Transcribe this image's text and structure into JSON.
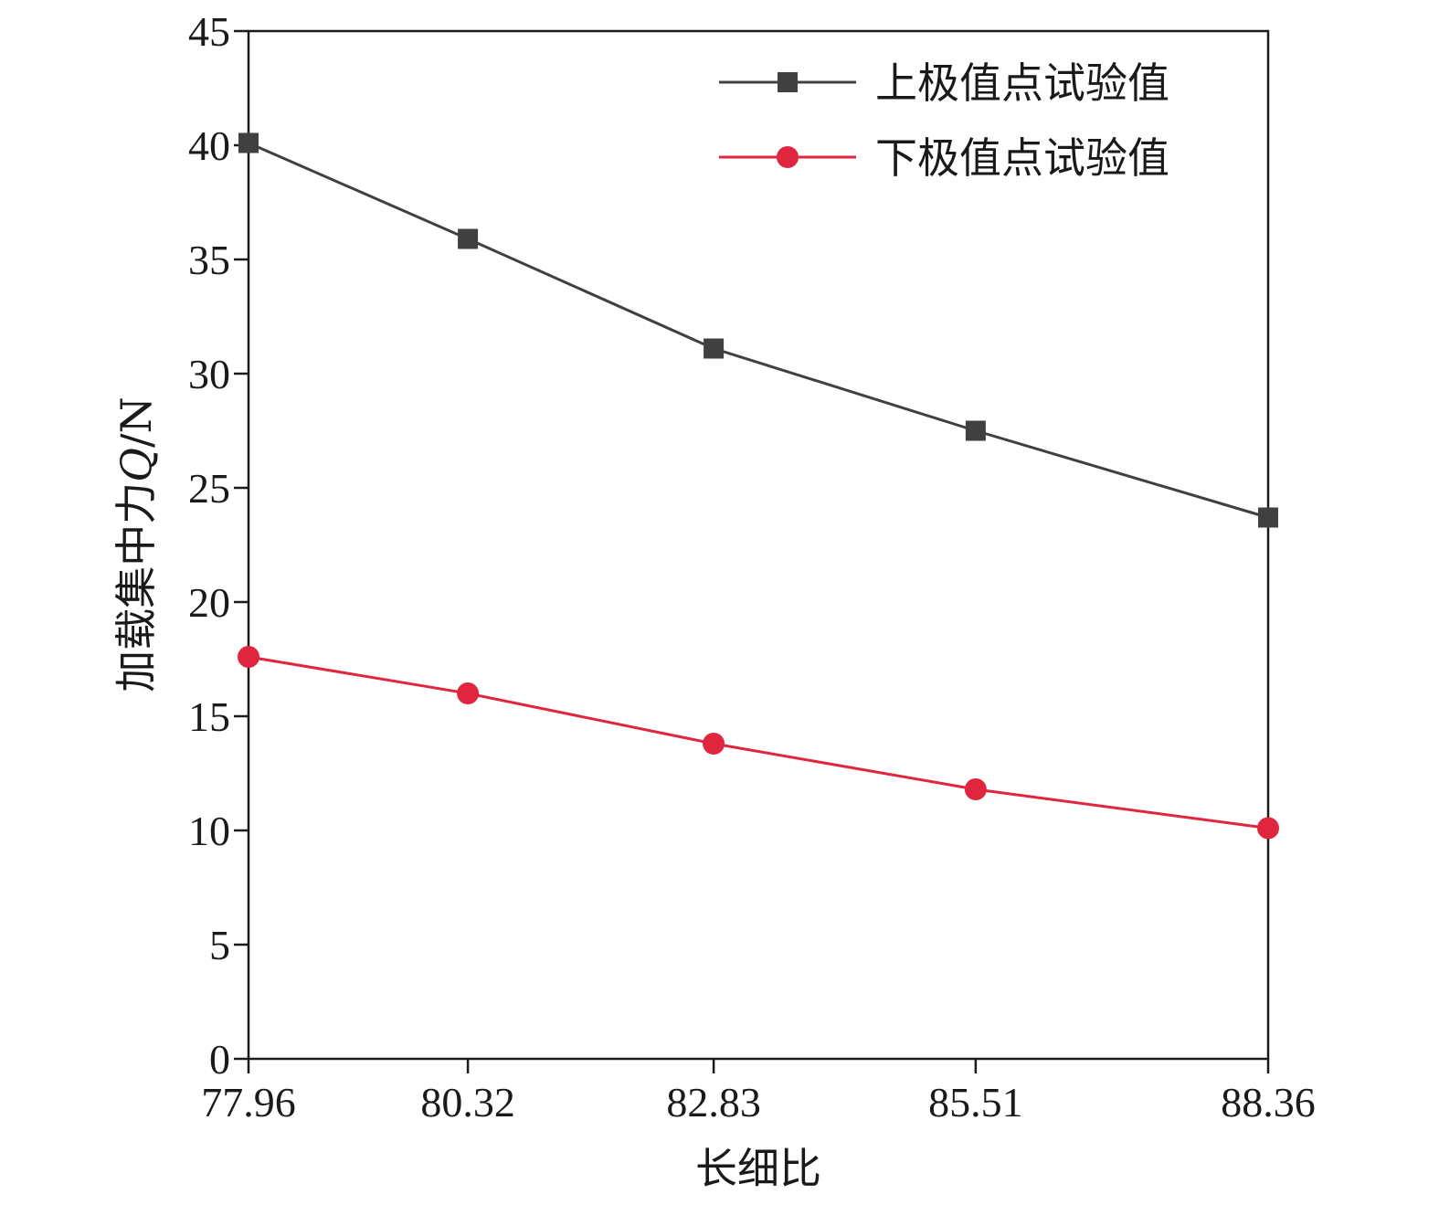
{
  "chart_data": {
    "type": "line",
    "x_tick_labels": [
      "77.96",
      "80.32",
      "82.83",
      "85.51",
      "88.36"
    ],
    "x": [
      77.96,
      80.32,
      82.83,
      85.51,
      88.36
    ],
    "x_plotted": [
      77.96,
      80.12,
      82.54,
      85.12,
      88.0
    ],
    "xlim": [
      77.96,
      88.0
    ],
    "ylim": [
      0,
      45
    ],
    "y_ticks": [
      0,
      5,
      10,
      15,
      20,
      25,
      30,
      35,
      40,
      45
    ],
    "xlabel": "长细比",
    "ylabel": {
      "prefix": "加载集中力",
      "symbol": "Q",
      "suffix": "/N"
    },
    "legend_position": "top-right",
    "grid": false,
    "series": [
      {
        "name": "上极值点试验值",
        "color": "#404040",
        "marker": "square",
        "values": [
          40.1,
          35.9,
          31.1,
          27.5,
          23.7
        ]
      },
      {
        "name": "下极值点试验值",
        "color": "#e0263f",
        "marker": "circle",
        "values": [
          17.6,
          16.0,
          13.8,
          11.8,
          10.1
        ]
      }
    ]
  }
}
